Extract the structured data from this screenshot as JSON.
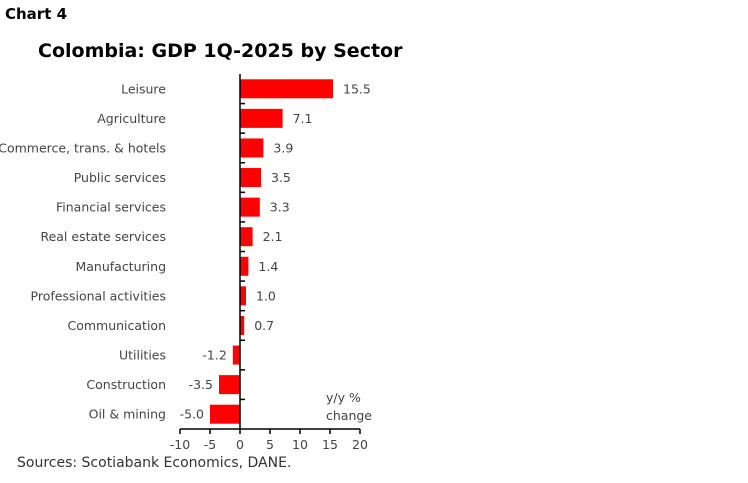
{
  "chart_label": "Chart 4",
  "source": "Sources: Scotiabank Economics, DANE.",
  "chart_data": {
    "type": "bar",
    "orientation": "horizontal",
    "title": "Colombia: GDP 1Q-2025 by Sector",
    "xlabel": "y/y % change",
    "xlim": [
      -10,
      20
    ],
    "xticks": [
      -10,
      -5,
      0,
      5,
      10,
      15,
      20
    ],
    "categories": [
      "Leisure",
      "Agriculture",
      "Commerce, trans. & hotels",
      "Public services",
      "Financial services",
      "Real estate services",
      "Manufacturing",
      "Professional activities",
      "Communication",
      "Utilities",
      "Construction",
      "Oil & mining"
    ],
    "values": [
      15.5,
      7.1,
      3.9,
      3.5,
      3.3,
      2.1,
      1.4,
      1.0,
      0.7,
      -1.2,
      -3.5,
      -5.0
    ],
    "value_labels": [
      "15.5",
      "7.1",
      "3.9",
      "3.5",
      "3.3",
      "2.1",
      "1.4",
      "1.0",
      "0.7",
      "-1.2",
      "-3.5",
      "-5.0"
    ],
    "bar_color": "#ff0000",
    "grid": false
  }
}
